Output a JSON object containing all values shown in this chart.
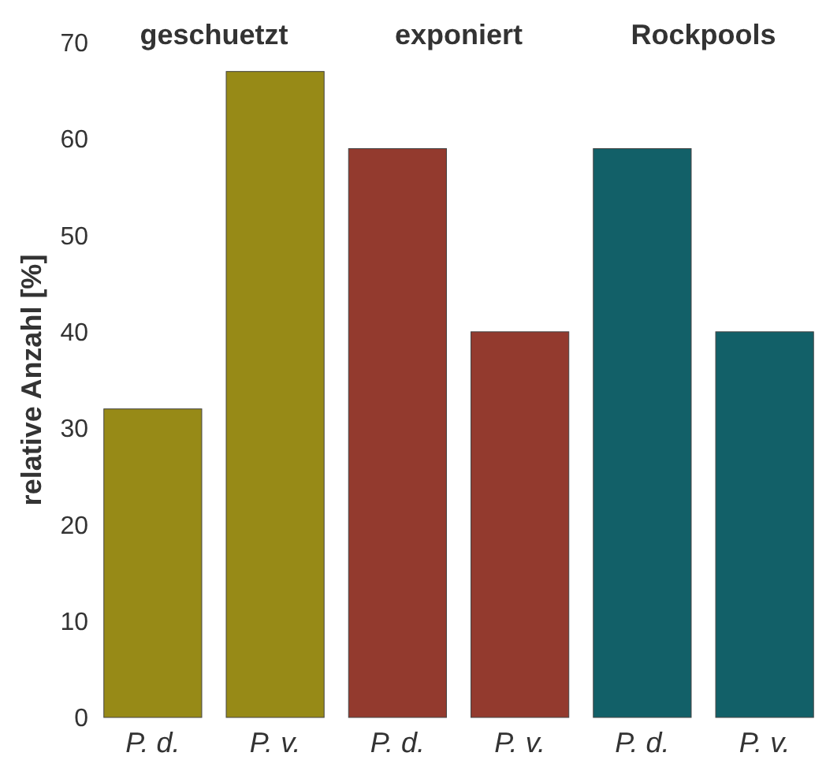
{
  "chart_data": {
    "type": "bar",
    "ylabel": "relative Anzahl [%]",
    "categories": [
      "P. d.",
      "P. v.",
      "P. d.",
      "P. v.",
      "P. d.",
      "P. v."
    ],
    "values": [
      32,
      67,
      59,
      40,
      59,
      40
    ],
    "colors": [
      "#978a17",
      "#978a17",
      "#933a2e",
      "#933a2e",
      "#126068",
      "#126068"
    ],
    "ylim": [
      0,
      70
    ],
    "yticks": [
      0,
      10,
      20,
      30,
      40,
      50,
      60,
      70
    ],
    "grid": false,
    "annotations": [
      "geschuetzt",
      "exponiert",
      "Rockpools"
    ]
  }
}
